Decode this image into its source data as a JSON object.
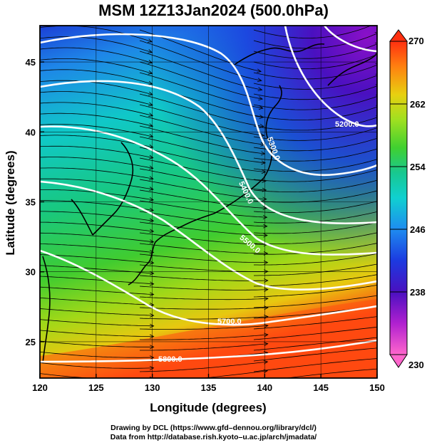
{
  "title": "MSM 12Z13Jan2024 (500.0hPa)",
  "credits": {
    "line1": "Drawing by DCL (https://www.gfd–dennou.org/library/dcl/)",
    "line2": "Data from http://database.rish.kyoto–u.ac.jp/arch/jmadata/"
  },
  "map": {
    "xlabel": "Longitude (degrees)",
    "ylabel": "Latitude  (degrees)",
    "xlim": [
      120,
      150
    ],
    "ylim": [
      22.4,
      47.6
    ],
    "xticks": [
      "120",
      "125",
      "130",
      "135",
      "140",
      "145",
      "150"
    ],
    "yticks": [
      "25",
      "30",
      "35",
      "40",
      "45"
    ],
    "xtick_values": [
      120,
      125,
      130,
      135,
      140,
      145,
      150
    ],
    "ytick_values": [
      25,
      30,
      35,
      40,
      45
    ],
    "contour_labels": [
      "5200.0",
      "5300.0",
      "5400.0",
      "5500.0",
      "5700.0",
      "5800.0"
    ],
    "shading_variable": "temperature (K)",
    "background_color": "#000000"
  },
  "colorbar": {
    "min_label": "230",
    "max_label": "270",
    "tick_labels": [
      "238",
      "246",
      "254",
      "262"
    ],
    "range": [
      230,
      270
    ],
    "colors": [
      "#ff66cc",
      "#b020d0",
      "#4a10c0",
      "#1c3ae0",
      "#1e8cf0",
      "#10d0d0",
      "#18c890",
      "#40d030",
      "#a0e020",
      "#e8d010",
      "#ff8010",
      "#ff3010"
    ]
  }
}
